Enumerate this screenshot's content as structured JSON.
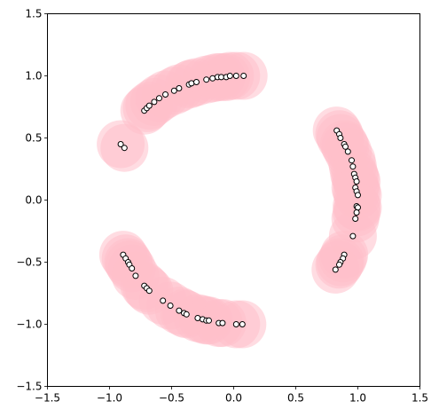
{
  "chart_data": {
    "type": "scatter",
    "title": "",
    "xlabel": "",
    "ylabel": "",
    "xlim": [
      -1.5,
      1.5
    ],
    "ylim": [
      -1.5,
      1.5
    ],
    "xticks": [
      -1.5,
      -1.0,
      -0.5,
      0.0,
      0.5,
      1.0,
      1.5
    ],
    "yticks": [
      -1.5,
      -1.0,
      -0.5,
      0.0,
      0.5,
      1.0,
      1.5
    ],
    "xtick_labels": [
      "−1.5",
      "−1.0",
      "−0.5",
      "0.0",
      "0.5",
      "1.0",
      "1.5"
    ],
    "ytick_labels": [
      "−1.5",
      "−1.0",
      "−0.5",
      "0.0",
      "0.5",
      "1.0",
      "1.5"
    ],
    "grid": false,
    "series": [
      {
        "marker": "large-disc",
        "color": "#ffc0cb",
        "points": [
          [
            -0.91,
            0.45
          ],
          [
            -0.88,
            0.42
          ],
          [
            -0.72,
            0.72
          ],
          [
            -0.7,
            0.74
          ],
          [
            -0.68,
            0.76
          ],
          [
            -0.64,
            0.79
          ],
          [
            -0.6,
            0.82
          ],
          [
            -0.55,
            0.85
          ],
          [
            -0.48,
            0.88
          ],
          [
            -0.44,
            0.9
          ],
          [
            -0.36,
            0.93
          ],
          [
            -0.34,
            0.94
          ],
          [
            -0.3,
            0.95
          ],
          [
            -0.22,
            0.97
          ],
          [
            -0.17,
            0.98
          ],
          [
            -0.13,
            0.99
          ],
          [
            -0.1,
            0.99
          ],
          [
            -0.06,
            0.99
          ],
          [
            -0.03,
            1.0
          ],
          [
            0.02,
            1.0
          ],
          [
            0.08,
            1.0
          ],
          [
            0.83,
            0.56
          ],
          [
            0.85,
            0.53
          ],
          [
            0.86,
            0.5
          ],
          [
            0.89,
            0.45
          ],
          [
            0.9,
            0.43
          ],
          [
            0.92,
            0.39
          ],
          [
            0.95,
            0.32
          ],
          [
            0.96,
            0.27
          ],
          [
            0.97,
            0.21
          ],
          [
            0.98,
            0.18
          ],
          [
            0.99,
            0.15
          ],
          [
            0.98,
            0.1
          ],
          [
            0.99,
            0.07
          ],
          [
            1.0,
            0.04
          ],
          [
            0.99,
            -0.05
          ],
          [
            1.0,
            -0.06
          ],
          [
            0.99,
            -0.1
          ],
          [
            0.98,
            -0.15
          ],
          [
            0.96,
            -0.29
          ],
          [
            0.89,
            -0.44
          ],
          [
            0.88,
            -0.47
          ],
          [
            0.86,
            -0.5
          ],
          [
            0.85,
            -0.52
          ],
          [
            0.82,
            -0.56
          ],
          [
            -0.89,
            -0.44
          ],
          [
            -0.87,
            -0.47
          ],
          [
            -0.85,
            -0.5
          ],
          [
            -0.84,
            -0.52
          ],
          [
            -0.82,
            -0.55
          ],
          [
            -0.79,
            -0.61
          ],
          [
            -0.72,
            -0.69
          ],
          [
            -0.7,
            -0.71
          ],
          [
            -0.68,
            -0.73
          ],
          [
            -0.57,
            -0.81
          ],
          [
            -0.51,
            -0.85
          ],
          [
            -0.44,
            -0.89
          ],
          [
            -0.4,
            -0.91
          ],
          [
            -0.38,
            -0.92
          ],
          [
            -0.29,
            -0.95
          ],
          [
            -0.25,
            -0.96
          ],
          [
            -0.22,
            -0.97
          ],
          [
            -0.2,
            -0.97
          ],
          [
            -0.12,
            -0.99
          ],
          [
            -0.09,
            -0.99
          ],
          [
            0.02,
            -1.0
          ],
          [
            0.07,
            -1.0
          ]
        ]
      },
      {
        "marker": "small-circle",
        "color": "#ffffff",
        "edge_color": "#000000",
        "points": [
          [
            -0.91,
            0.45
          ],
          [
            -0.88,
            0.42
          ],
          [
            -0.72,
            0.72
          ],
          [
            -0.7,
            0.74
          ],
          [
            -0.68,
            0.76
          ],
          [
            -0.64,
            0.79
          ],
          [
            -0.6,
            0.82
          ],
          [
            -0.55,
            0.85
          ],
          [
            -0.48,
            0.88
          ],
          [
            -0.44,
            0.9
          ],
          [
            -0.36,
            0.93
          ],
          [
            -0.34,
            0.94
          ],
          [
            -0.3,
            0.95
          ],
          [
            -0.22,
            0.97
          ],
          [
            -0.17,
            0.98
          ],
          [
            -0.13,
            0.99
          ],
          [
            -0.1,
            0.99
          ],
          [
            -0.06,
            0.99
          ],
          [
            -0.03,
            1.0
          ],
          [
            0.02,
            1.0
          ],
          [
            0.08,
            1.0
          ],
          [
            0.83,
            0.56
          ],
          [
            0.85,
            0.53
          ],
          [
            0.86,
            0.5
          ],
          [
            0.89,
            0.45
          ],
          [
            0.9,
            0.43
          ],
          [
            0.92,
            0.39
          ],
          [
            0.95,
            0.32
          ],
          [
            0.96,
            0.27
          ],
          [
            0.97,
            0.21
          ],
          [
            0.98,
            0.18
          ],
          [
            0.99,
            0.15
          ],
          [
            0.98,
            0.1
          ],
          [
            0.99,
            0.07
          ],
          [
            1.0,
            0.04
          ],
          [
            0.99,
            -0.05
          ],
          [
            1.0,
            -0.06
          ],
          [
            0.99,
            -0.1
          ],
          [
            0.98,
            -0.15
          ],
          [
            0.96,
            -0.29
          ],
          [
            0.89,
            -0.44
          ],
          [
            0.88,
            -0.47
          ],
          [
            0.86,
            -0.5
          ],
          [
            0.85,
            -0.52
          ],
          [
            0.82,
            -0.56
          ],
          [
            -0.89,
            -0.44
          ],
          [
            -0.87,
            -0.47
          ],
          [
            -0.85,
            -0.5
          ],
          [
            -0.84,
            -0.52
          ],
          [
            -0.82,
            -0.55
          ],
          [
            -0.79,
            -0.61
          ],
          [
            -0.72,
            -0.69
          ],
          [
            -0.7,
            -0.71
          ],
          [
            -0.68,
            -0.73
          ],
          [
            -0.57,
            -0.81
          ],
          [
            -0.51,
            -0.85
          ],
          [
            -0.44,
            -0.89
          ],
          [
            -0.4,
            -0.91
          ],
          [
            -0.38,
            -0.92
          ],
          [
            -0.29,
            -0.95
          ],
          [
            -0.25,
            -0.96
          ],
          [
            -0.22,
            -0.97
          ],
          [
            -0.2,
            -0.97
          ],
          [
            -0.12,
            -0.99
          ],
          [
            -0.09,
            -0.99
          ],
          [
            0.02,
            -1.0
          ],
          [
            0.07,
            -1.0
          ]
        ]
      }
    ]
  }
}
